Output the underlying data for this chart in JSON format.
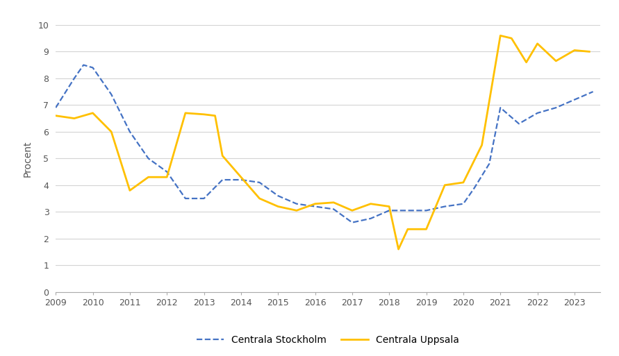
{
  "stockholm_x": [
    2009.0,
    2009.5,
    2009.75,
    2010.0,
    2010.5,
    2011.0,
    2011.5,
    2012.0,
    2012.3,
    2012.5,
    2013.0,
    2013.5,
    2014.0,
    2014.5,
    2015.0,
    2015.5,
    2016.0,
    2016.5,
    2017.0,
    2017.5,
    2018.0,
    2018.5,
    2019.0,
    2019.5,
    2020.0,
    2020.3,
    2020.7,
    2021.0,
    2021.5,
    2022.0,
    2022.5,
    2023.0,
    2023.5
  ],
  "stockholm_y": [
    6.9,
    8.0,
    8.5,
    8.4,
    7.4,
    6.0,
    5.0,
    4.5,
    3.9,
    3.5,
    3.5,
    4.2,
    4.2,
    4.1,
    3.6,
    3.3,
    3.2,
    3.1,
    2.6,
    2.75,
    3.05,
    3.05,
    3.05,
    3.2,
    3.3,
    3.9,
    4.8,
    6.9,
    6.3,
    6.7,
    6.9,
    7.2,
    7.5
  ],
  "uppsala_x": [
    2009.0,
    2009.5,
    2010.0,
    2010.5,
    2011.0,
    2011.5,
    2012.0,
    2012.5,
    2013.0,
    2013.3,
    2013.5,
    2014.0,
    2014.5,
    2015.0,
    2015.5,
    2016.0,
    2016.5,
    2017.0,
    2017.5,
    2018.0,
    2018.25,
    2018.5,
    2019.0,
    2019.5,
    2020.0,
    2020.5,
    2021.0,
    2021.3,
    2021.7,
    2022.0,
    2022.5,
    2023.0,
    2023.4
  ],
  "uppsala_y": [
    6.6,
    6.5,
    6.7,
    6.0,
    3.8,
    4.3,
    4.3,
    6.7,
    6.65,
    6.6,
    5.1,
    4.3,
    3.5,
    3.2,
    3.05,
    3.3,
    3.35,
    3.05,
    3.3,
    3.2,
    1.6,
    2.35,
    2.35,
    4.0,
    4.1,
    5.5,
    9.6,
    9.5,
    8.6,
    9.3,
    8.65,
    9.05,
    9.0
  ],
  "stockholm_color": "#4472C4",
  "uppsala_color": "#FFC000",
  "ylabel": "Procent",
  "ylim": [
    0,
    10
  ],
  "yticks": [
    0,
    1,
    2,
    3,
    4,
    5,
    6,
    7,
    8,
    9,
    10
  ],
  "xlim": [
    2009,
    2023.7
  ],
  "xticks": [
    2009,
    2010,
    2011,
    2012,
    2013,
    2014,
    2015,
    2016,
    2017,
    2018,
    2019,
    2020,
    2021,
    2022,
    2023
  ],
  "legend_stockholm": "Centrala Stockholm",
  "legend_uppsala": "Centrala Uppsala",
  "background_color": "#ffffff",
  "grid_color": "#d3d3d3"
}
